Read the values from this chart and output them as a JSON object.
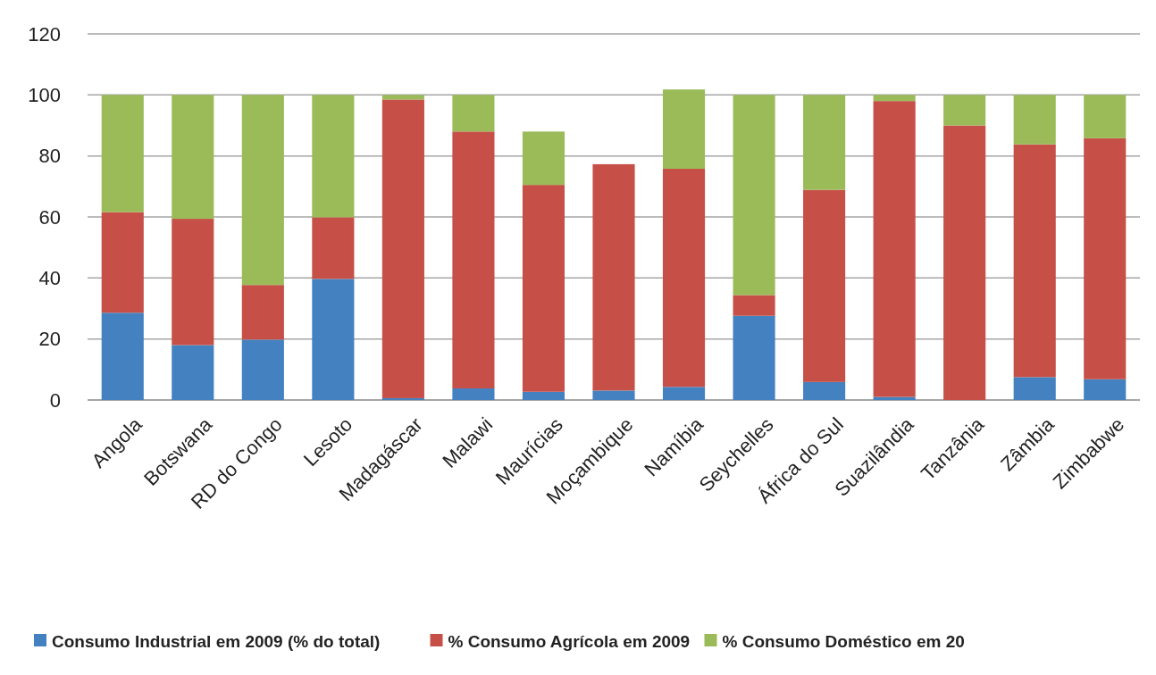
{
  "chart_data": {
    "type": "bar",
    "stacked": true,
    "categories": [
      "Angola",
      "Botswana",
      "RD do Congo",
      "Lesoto",
      "Madagáscar",
      "Malawi",
      "Maurícias",
      "Moçambique",
      "Namíbia",
      "Seychelles",
      "África do Sul",
      "Suazilândia",
      "Tanzânia",
      "Zâmbia",
      "Zimbabwe"
    ],
    "series": [
      {
        "name": "Consumo Industrial em 2009 (% do total)",
        "color": "#4481c1",
        "values": [
          28.6,
          18,
          19.8,
          39.7,
          0.6,
          3.8,
          2.7,
          3.1,
          4.3,
          27.6,
          5.9,
          1,
          0,
          7.5,
          6.8
        ]
      },
      {
        "name": "% Consumo Agrícola em 2009",
        "color": "#c65047",
        "values": [
          33,
          41.4,
          17.9,
          20.2,
          97.9,
          84.2,
          67.8,
          74.2,
          71.5,
          6.8,
          63,
          97,
          90,
          76.3,
          79
        ]
      },
      {
        "name": "% Consumo Doméstico em 20",
        "color": "#9bbb59",
        "values": [
          38.4,
          40.6,
          62.3,
          40.1,
          1.5,
          12,
          17.5,
          0,
          26,
          65.6,
          31.1,
          2,
          10,
          16.2,
          14.2
        ]
      }
    ],
    "ylim": [
      0,
      120
    ],
    "yticks": [
      0,
      20,
      40,
      60,
      80,
      100,
      120
    ],
    "grid": "y",
    "legend": "bottom"
  }
}
